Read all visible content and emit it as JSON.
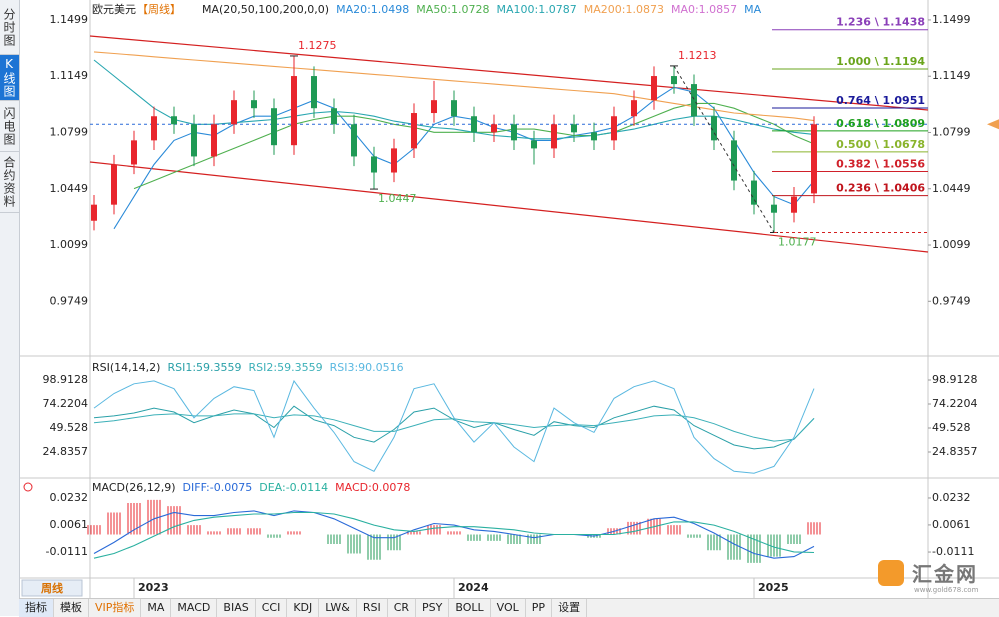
{
  "chart_data": [
    {
      "type": "candlestick",
      "title": "欧元美元",
      "period": "【周线】",
      "legend_title": "MA(20,50,100,200,0,0)",
      "up_color": "#e8262d",
      "down_color": "#1f9a55",
      "categories": [
        null,
        null,
        "2023",
        null,
        null,
        null,
        null,
        null,
        null,
        null,
        null,
        null,
        null,
        null,
        null,
        null,
        null,
        null,
        "2024",
        null,
        null,
        null,
        null,
        null,
        null,
        null,
        null,
        null,
        null,
        null,
        null,
        null,
        null,
        "2025",
        null,
        null,
        null
      ],
      "opens": [
        1.025,
        1.035,
        1.06,
        1.075,
        1.09,
        1.085,
        1.065,
        1.085,
        1.1,
        1.095,
        1.072,
        1.115,
        1.095,
        1.085,
        1.065,
        1.055,
        1.07,
        1.092,
        1.1,
        1.09,
        1.08,
        1.085,
        1.075,
        1.07,
        1.085,
        1.08,
        1.075,
        1.09,
        1.1,
        1.115,
        1.11,
        1.09,
        1.075,
        1.05,
        1.035,
        1.03,
        1.042
      ],
      "highs": [
        1.041,
        1.066,
        1.081,
        1.096,
        1.096,
        1.091,
        1.091,
        1.106,
        1.106,
        1.101,
        1.1275,
        1.121,
        1.101,
        1.091,
        1.071,
        1.076,
        1.098,
        1.112,
        1.106,
        1.096,
        1.091,
        1.091,
        1.081,
        1.091,
        1.091,
        1.086,
        1.096,
        1.106,
        1.121,
        1.1213,
        1.116,
        1.096,
        1.081,
        1.056,
        1.041,
        1.046,
        1.09
      ],
      "lows": [
        1.019,
        1.029,
        1.054,
        1.069,
        1.079,
        1.059,
        1.059,
        1.079,
        1.089,
        1.066,
        1.066,
        1.089,
        1.079,
        1.059,
        1.0447,
        1.049,
        1.064,
        1.086,
        1.084,
        1.074,
        1.074,
        1.069,
        1.06,
        1.064,
        1.074,
        1.069,
        1.069,
        1.084,
        1.094,
        1.104,
        1.084,
        1.069,
        1.044,
        1.029,
        1.0177,
        1.024,
        1.036
      ],
      "closes": [
        1.035,
        1.06,
        1.075,
        1.09,
        1.085,
        1.065,
        1.085,
        1.1,
        1.095,
        1.072,
        1.115,
        1.095,
        1.085,
        1.065,
        1.055,
        1.07,
        1.092,
        1.1,
        1.09,
        1.08,
        1.085,
        1.075,
        1.07,
        1.085,
        1.08,
        1.075,
        1.09,
        1.1,
        1.115,
        1.11,
        1.09,
        1.075,
        1.05,
        1.035,
        1.03,
        1.04,
        1.085
      ],
      "series": [
        {
          "name": "MA20:1.0498",
          "color": "#2a8ad8",
          "values": [
            null,
            1.02,
            1.04,
            1.06,
            1.075,
            1.08,
            1.078,
            1.085,
            1.09,
            1.09,
            1.095,
            1.1,
            1.095,
            1.08,
            1.065,
            1.06,
            1.07,
            1.085,
            1.09,
            1.088,
            1.083,
            1.08,
            1.075,
            1.075,
            1.078,
            1.08,
            1.083,
            1.09,
            1.1,
            1.108,
            1.105,
            1.095,
            1.075,
            1.055,
            1.04,
            1.035,
            1.0498
          ]
        },
        {
          "name": "MA50:1.0728",
          "color": "#4fb04f",
          "values": [
            null,
            null,
            1.045,
            1.05,
            1.055,
            1.06,
            1.065,
            1.07,
            1.075,
            1.08,
            1.085,
            1.088,
            1.09,
            1.09,
            1.088,
            1.085,
            1.083,
            1.08,
            1.08,
            1.08,
            1.08,
            1.082,
            1.082,
            1.08,
            1.078,
            1.078,
            1.08,
            1.085,
            1.09,
            1.095,
            1.098,
            1.098,
            1.095,
            1.09,
            1.085,
            1.078,
            1.0728
          ]
        },
        {
          "name": "MA100:1.0787",
          "color": "#28a6b0",
          "values": [
            1.125,
            1.115,
            1.105,
            1.095,
            1.088,
            1.085,
            1.085,
            1.086,
            1.087,
            1.088,
            1.09,
            1.092,
            1.093,
            1.092,
            1.09,
            1.087,
            1.085,
            1.083,
            1.082,
            1.08,
            1.078,
            1.077,
            1.076,
            1.076,
            1.077,
            1.078,
            1.08,
            1.082,
            1.085,
            1.088,
            1.09,
            1.09,
            1.088,
            1.085,
            1.082,
            1.08,
            1.0787
          ]
        },
        {
          "name": "MA200:1.0873",
          "color": "#f0a050",
          "values": [
            1.13,
            1.129,
            1.128,
            1.127,
            1.126,
            1.125,
            1.124,
            1.123,
            1.122,
            1.121,
            1.12,
            1.119,
            1.118,
            1.117,
            1.116,
            1.115,
            1.114,
            1.113,
            1.112,
            1.111,
            1.11,
            1.109,
            1.108,
            1.107,
            1.106,
            1.105,
            1.104,
            1.102,
            1.1,
            1.098,
            1.096,
            1.094,
            1.092,
            1.091,
            1.09,
            1.089,
            1.0873
          ]
        }
      ],
      "extra_legend": [
        {
          "label": "MA0:1.0857",
          "color": "#d070d0"
        },
        {
          "label": "MA",
          "color": "#2a8ad8"
        }
      ],
      "ylim": [
        0.9415,
        1.1623
      ],
      "yticks": [
        1.1499,
        1.1149,
        1.0799,
        1.0449,
        1.0099,
        0.9749
      ],
      "annotations": [
        {
          "value": 1.1275,
          "kind": "high",
          "color": "#e8262d"
        },
        {
          "value": 1.0447,
          "kind": "low",
          "color": "#4fb04f"
        },
        {
          "value": 1.1213,
          "kind": "high",
          "color": "#e8262d"
        },
        {
          "value": 1.0177,
          "kind": "low",
          "color": "#4fb04f"
        }
      ],
      "fib_levels": [
        {
          "label": "1.236 \\ 1.1438",
          "price": 1.1438,
          "color": "#8a3fb8"
        },
        {
          "label": "1.000 \\ 1.1194",
          "price": 1.1194,
          "color": "#6aa51c"
        },
        {
          "label": "0.764 \\ 1.0951",
          "price": 1.0951,
          "color": "#1a1a9a"
        },
        {
          "label": "0.618 \\ 1.0809",
          "price": 1.0809,
          "color": "#1ea01e"
        },
        {
          "label": "0.500 \\ 1.0678",
          "price": 1.0678,
          "color": "#8ab42c"
        },
        {
          "label": "0.382 \\ 1.0556",
          "price": 1.0556,
          "color": "#d0202a"
        },
        {
          "label": "0.236 \\ 1.0406",
          "price": 1.0406,
          "color": "#c0141c"
        }
      ]
    },
    {
      "type": "line",
      "legend_title": "RSI(14,14,2)",
      "ylim": [
        -1.92,
        119.49
      ],
      "yticks": [
        98.9128,
        74.2204,
        49.528,
        24.8357
      ],
      "series": [
        {
          "name": "RSI1:59.3559",
          "color": "#2aa0a8",
          "values": [
            60,
            62,
            65,
            70,
            66,
            55,
            62,
            68,
            64,
            50,
            72,
            58,
            52,
            40,
            35,
            48,
            66,
            70,
            58,
            50,
            55,
            48,
            42,
            56,
            52,
            50,
            60,
            66,
            72,
            68,
            52,
            42,
            32,
            28,
            30,
            38,
            59.3559
          ]
        },
        {
          "name": "RSI2:59.3559",
          "color": "#3cb0b8",
          "values": [
            55,
            57,
            60,
            63,
            64,
            62,
            62,
            64,
            64,
            60,
            63,
            62,
            58,
            52,
            46,
            46,
            52,
            58,
            59,
            56,
            55,
            53,
            50,
            52,
            53,
            52,
            55,
            58,
            62,
            63,
            60,
            54,
            46,
            40,
            36,
            38,
            59.3559
          ]
        },
        {
          "name": "RSI3:90.0516",
          "color": "#5ab8e0",
          "values": [
            70,
            85,
            95,
            98,
            90,
            60,
            80,
            92,
            88,
            40,
            98,
            70,
            45,
            15,
            5,
            40,
            90,
            95,
            60,
            35,
            55,
            30,
            15,
            70,
            55,
            45,
            80,
            92,
            98,
            90,
            40,
            18,
            5,
            3,
            10,
            40,
            90.0516
          ]
        }
      ]
    },
    {
      "type": "macd",
      "legend_title": "MACD(26,12,9)",
      "ylim": [
        -0.02567,
        0.03333
      ],
      "yticks": [
        0.0232,
        0.0061,
        -0.0111
      ],
      "up_color": "#e8262d",
      "down_color": "#1f9a55",
      "series": [
        {
          "name": "DIFF:-0.0075",
          "color": "#2a6ad8",
          "kind": "line",
          "values": [
            -0.012,
            -0.005,
            0.003,
            0.01,
            0.014,
            0.012,
            0.012,
            0.014,
            0.015,
            0.012,
            0.015,
            0.014,
            0.01,
            0.004,
            -0.002,
            -0.002,
            0.003,
            0.007,
            0.006,
            0.003,
            0.002,
            0.0,
            -0.002,
            0.0,
            0.0,
            -0.001,
            0.002,
            0.006,
            0.01,
            0.011,
            0.007,
            0.001,
            -0.006,
            -0.012,
            -0.015,
            -0.014,
            -0.0075
          ]
        },
        {
          "name": "DEA:-0.0114",
          "color": "#2ab0a0",
          "kind": "line",
          "values": [
            -0.015,
            -0.012,
            -0.007,
            -0.001,
            0.005,
            0.009,
            0.011,
            0.012,
            0.013,
            0.013,
            0.014,
            0.014,
            0.013,
            0.01,
            0.006,
            0.003,
            0.002,
            0.004,
            0.005,
            0.005,
            0.004,
            0.003,
            0.001,
            0.0,
            0.0,
            0.0,
            0.0,
            0.002,
            0.005,
            0.008,
            0.008,
            0.006,
            0.002,
            -0.003,
            -0.008,
            -0.011,
            -0.0114
          ]
        },
        {
          "name": "MACD:0.0078",
          "color": "#e8262d",
          "kind": "bar",
          "values": [
            0.006,
            0.014,
            0.02,
            0.022,
            0.018,
            0.006,
            0.002,
            0.004,
            0.004,
            -0.002,
            0.002,
            0.0,
            -0.006,
            -0.012,
            -0.016,
            -0.01,
            0.002,
            0.006,
            0.002,
            -0.004,
            -0.004,
            -0.006,
            -0.006,
            0.0,
            0.0,
            -0.002,
            0.004,
            0.008,
            0.01,
            0.006,
            -0.002,
            -0.01,
            -0.016,
            -0.018,
            -0.014,
            -0.006,
            0.0078
          ]
        }
      ]
    }
  ],
  "ui": {
    "side_tabs": [
      "分时图",
      "K线图",
      "闪电图",
      "合约资料"
    ],
    "period_tab": "周线",
    "toolbar": [
      "指标",
      "模板",
      "VIP指标",
      "MA",
      "MACD",
      "BIAS",
      "CCI",
      "KDJ",
      "LW&",
      "RSI",
      "CR",
      "PSY",
      "BOLL",
      "VOL",
      "PP",
      "设置"
    ],
    "logo": "汇金网",
    "logo_url": "www.gold678.com"
  }
}
